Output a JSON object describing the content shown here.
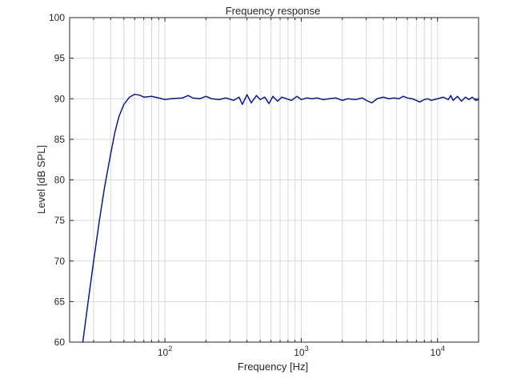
{
  "chart_data": {
    "type": "line",
    "title": "Frequency response",
    "xlabel": "Frequency [Hz]",
    "ylabel": "Level [dB SPL]",
    "x_scale": "log",
    "xlim": [
      20,
      20000
    ],
    "ylim": [
      60,
      100
    ],
    "grid": true,
    "legend": "none",
    "x_ticks": [
      {
        "value": 100,
        "base": "10",
        "exp": "2"
      },
      {
        "value": 1000,
        "base": "10",
        "exp": "3"
      },
      {
        "value": 10000,
        "base": "10",
        "exp": "4"
      }
    ],
    "y_ticks": [
      {
        "value": 60,
        "label": "60"
      },
      {
        "value": 65,
        "label": "65"
      },
      {
        "value": 70,
        "label": "70"
      },
      {
        "value": 75,
        "label": "75"
      },
      {
        "value": 80,
        "label": "80"
      },
      {
        "value": 85,
        "label": "85"
      },
      {
        "value": 90,
        "label": "90"
      },
      {
        "value": 95,
        "label": "95"
      },
      {
        "value": 100,
        "label": "100"
      }
    ],
    "colors": {
      "line": "#0d1a80",
      "grid": "#d9d9d9",
      "axis": "#262626"
    },
    "series": [
      {
        "points": [
          [
            25,
            60.0
          ],
          [
            27,
            64.3
          ],
          [
            30,
            70.0
          ],
          [
            33,
            74.9
          ],
          [
            36,
            79.0
          ],
          [
            40,
            83.2
          ],
          [
            43,
            85.9
          ],
          [
            46,
            87.8
          ],
          [
            50,
            89.3
          ],
          [
            55,
            90.2
          ],
          [
            60,
            90.55
          ],
          [
            65,
            90.45
          ],
          [
            70,
            90.2
          ],
          [
            80,
            90.3
          ],
          [
            90,
            90.1
          ],
          [
            100,
            89.9
          ],
          [
            110,
            90.0
          ],
          [
            120,
            90.05
          ],
          [
            135,
            90.1
          ],
          [
            148,
            90.4
          ],
          [
            160,
            90.1
          ],
          [
            180,
            90.0
          ],
          [
            200,
            90.3
          ],
          [
            220,
            90.0
          ],
          [
            250,
            89.9
          ],
          [
            280,
            90.1
          ],
          [
            320,
            89.8
          ],
          [
            350,
            90.2
          ],
          [
            370,
            89.3
          ],
          [
            400,
            90.5
          ],
          [
            430,
            89.5
          ],
          [
            470,
            90.4
          ],
          [
            500,
            89.9
          ],
          [
            540,
            90.2
          ],
          [
            580,
            89.4
          ],
          [
            620,
            90.3
          ],
          [
            670,
            89.7
          ],
          [
            720,
            90.2
          ],
          [
            780,
            90.0
          ],
          [
            850,
            89.8
          ],
          [
            930,
            90.3
          ],
          [
            1000,
            89.9
          ],
          [
            1100,
            90.1
          ],
          [
            1200,
            90.0
          ],
          [
            1300,
            90.1
          ],
          [
            1450,
            89.9
          ],
          [
            1600,
            90.0
          ],
          [
            1800,
            90.1
          ],
          [
            2000,
            89.8
          ],
          [
            2200,
            90.0
          ],
          [
            2500,
            89.9
          ],
          [
            2800,
            90.1
          ],
          [
            3000,
            89.8
          ],
          [
            3300,
            89.5
          ],
          [
            3600,
            90.0
          ],
          [
            4000,
            90.2
          ],
          [
            4400,
            90.0
          ],
          [
            4800,
            90.1
          ],
          [
            5200,
            90.0
          ],
          [
            5600,
            90.3
          ],
          [
            6000,
            90.1
          ],
          [
            6500,
            90.0
          ],
          [
            7000,
            89.8
          ],
          [
            7400,
            89.6
          ],
          [
            8000,
            89.9
          ],
          [
            8500,
            90.0
          ],
          [
            9000,
            89.8
          ],
          [
            10000,
            90.0
          ],
          [
            11000,
            90.2
          ],
          [
            12000,
            89.9
          ],
          [
            12500,
            90.4
          ],
          [
            13000,
            89.8
          ],
          [
            14000,
            90.3
          ],
          [
            15000,
            89.7
          ],
          [
            16000,
            90.2
          ],
          [
            17000,
            89.9
          ],
          [
            18000,
            90.2
          ],
          [
            19000,
            89.8
          ],
          [
            20000,
            89.9
          ]
        ]
      }
    ]
  }
}
